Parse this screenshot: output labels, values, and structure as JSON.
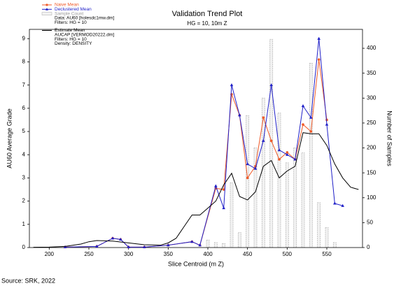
{
  "chart_data": {
    "type": "line",
    "title": "Validation Trend Plot",
    "subtitle": "HG = 10, 10m Z",
    "x_label": "Slice Centroid (m Z)",
    "y_label": "AU60 Average Grade",
    "y2_label": "Number of Samples",
    "xlim": [
      175,
      595
    ],
    "xticks": [
      200,
      250,
      300,
      350,
      400,
      450,
      500,
      550
    ],
    "ylim": [
      0,
      9.4
    ],
    "yticks": [
      0,
      1,
      2,
      3,
      4,
      5,
      6,
      7,
      8,
      9
    ],
    "y2lim": [
      0,
      438
    ],
    "y2ticks": [
      0,
      50,
      100,
      150,
      200,
      250,
      300,
      350,
      400
    ],
    "series": [
      {
        "name": "Naive Mean",
        "type": "line",
        "marker": "circle",
        "color": "#f05a28",
        "x": [
          220,
          260,
          280,
          290,
          300,
          320,
          350,
          380,
          390,
          410,
          420,
          430,
          440,
          450,
          460,
          470,
          480,
          490,
          500,
          510,
          520,
          530,
          540,
          550,
          560,
          570
        ],
        "values": [
          0.02,
          0.05,
          0.4,
          0.35,
          0.02,
          0.02,
          0.1,
          0.25,
          0.1,
          2.55,
          2.5,
          6.6,
          5.7,
          3.0,
          3.5,
          5.6,
          4.6,
          3.8,
          4.1,
          3.8,
          5.3,
          5.0,
          8.1,
          5.5,
          null,
          null
        ]
      },
      {
        "name": "Declustered Mean",
        "type": "line",
        "marker": "triangle",
        "color": "#1f1fc8",
        "x": [
          220,
          260,
          280,
          290,
          300,
          320,
          350,
          380,
          390,
          410,
          420,
          430,
          440,
          450,
          460,
          470,
          480,
          490,
          500,
          510,
          520,
          530,
          540,
          550,
          560,
          570
        ],
        "values": [
          0.02,
          0.05,
          0.4,
          0.35,
          0.02,
          0.02,
          0.1,
          0.25,
          0.1,
          2.65,
          1.7,
          7.0,
          5.7,
          3.6,
          3.4,
          4.6,
          7.0,
          4.2,
          4.0,
          3.8,
          6.1,
          5.6,
          9.0,
          5.3,
          1.9,
          1.8
        ]
      },
      {
        "name": "Sample Count",
        "type": "bar",
        "axis": "y2",
        "color": "#b8b8b8",
        "x": [
          400,
          410,
          420,
          430,
          440,
          450,
          460,
          470,
          480,
          490,
          500,
          510,
          520,
          530,
          540,
          550,
          560
        ],
        "values": [
          15,
          10,
          8,
          130,
          30,
          265,
          200,
          300,
          418,
          270,
          170,
          200,
          190,
          370,
          90,
          40,
          10
        ]
      },
      {
        "name": "Estimate Mean",
        "type": "line",
        "marker": "none",
        "color": "#000000",
        "x": [
          180,
          200,
          220,
          240,
          250,
          260,
          280,
          300,
          320,
          340,
          350,
          360,
          370,
          380,
          390,
          400,
          410,
          420,
          430,
          440,
          450,
          460,
          470,
          480,
          490,
          500,
          510,
          520,
          530,
          540,
          550,
          560,
          570,
          580,
          590
        ],
        "values": [
          0.01,
          0.02,
          0.05,
          0.15,
          0.25,
          0.3,
          0.28,
          0.2,
          0.12,
          0.1,
          0.2,
          0.4,
          0.9,
          1.4,
          1.4,
          1.7,
          2.0,
          2.7,
          3.2,
          2.2,
          2.05,
          2.4,
          3.5,
          3.75,
          3.0,
          3.3,
          3.5,
          4.95,
          4.9,
          4.9,
          4.4,
          3.6,
          3.0,
          2.6,
          2.5
        ]
      }
    ],
    "legend_notes": [
      {
        "after_series": 2,
        "lines": [
          "Data: AU60 [holesdc1mw.dm]",
          "Filters: HG = 10"
        ]
      },
      {
        "after_series": 3,
        "lines": [
          "AUCAP [VERMOD20222.dm]",
          "Filters: HG = 10",
          "Density: DENSITY"
        ]
      }
    ]
  },
  "source": "Source: SRK, 2022"
}
